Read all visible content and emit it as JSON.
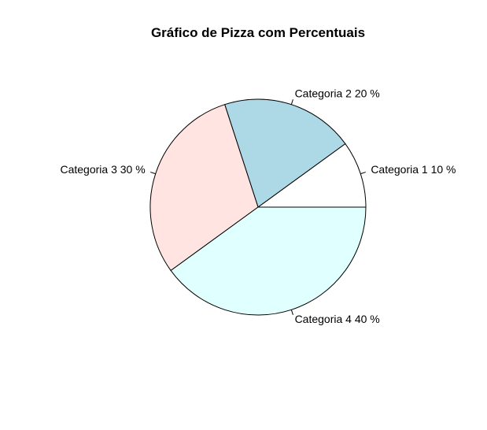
{
  "chart_data": {
    "type": "pie",
    "title": "Gráfico de Pizza com Percentuais",
    "categories": [
      "Categoria 1",
      "Categoria 2",
      "Categoria 3",
      "Categoria 4"
    ],
    "values": [
      10,
      20,
      30,
      40
    ],
    "labels": [
      "Categoria 1 10 %",
      "Categoria 2 20 %",
      "Categoria 3 30 %",
      "Categoria 4 40 %"
    ],
    "colors": [
      "#ffffff",
      "#add8e6",
      "#ffe4e1",
      "#e0ffff"
    ],
    "start": "3 o'clock",
    "direction": "counterclockwise"
  }
}
